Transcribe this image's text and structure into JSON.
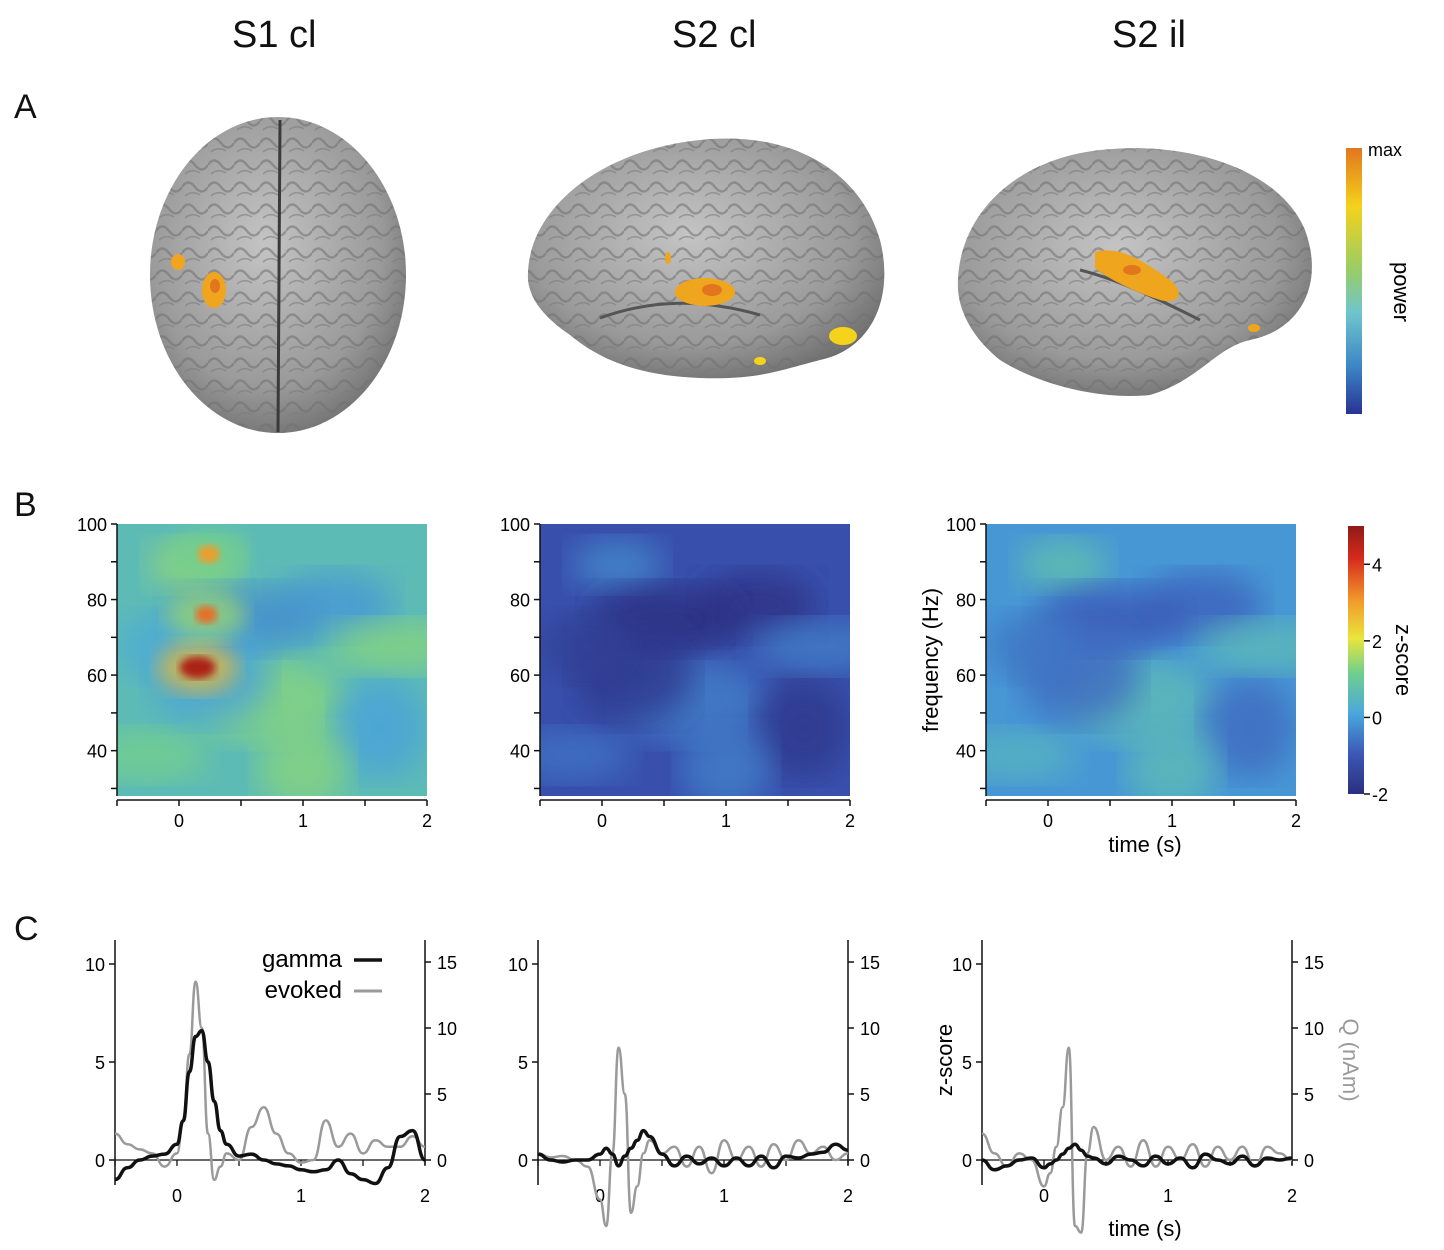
{
  "columns": [
    "S1 cl",
    "S2 cl",
    "S2 il"
  ],
  "panel_letters": [
    "A",
    "B",
    "C"
  ],
  "panelA": {
    "colorbar": {
      "top_label": "max",
      "axis_label": "power",
      "colors": [
        "#e2761f",
        "#f5d21b",
        "#9bcd63",
        "#6fc5cc",
        "#3d86c6",
        "#283393"
      ]
    },
    "brain_color": "#9a9a9a",
    "activation_color": "#f0a51e"
  },
  "panelB": {
    "ylabel": "frequency (Hz)",
    "xlabel": "time (s)",
    "xlim": [
      -0.5,
      2
    ],
    "ylim": [
      28,
      100
    ],
    "xticks": [
      "0",
      "1",
      "2"
    ],
    "yticks": [
      "100",
      "80",
      "60",
      "40"
    ],
    "colorbar": {
      "label": "z-score",
      "ticks": [
        "4",
        "2",
        "0",
        "-2"
      ],
      "range": [
        -2,
        5
      ],
      "colors": [
        "#2b2f7e",
        "#3b58b7",
        "#4aa7dc",
        "#6fcf8f",
        "#e8e63b",
        "#f29b2b",
        "#d62a1c",
        "#8e1b16"
      ]
    }
  },
  "panelC": {
    "left_label": "z-score",
    "right_label": "Q (nAm)",
    "xlabel": "time (s)",
    "xticks": [
      "0",
      "1",
      "2"
    ],
    "left_ticks": [
      "10",
      "5",
      "0"
    ],
    "right_ticks": [
      "15",
      "10",
      "5",
      "0"
    ],
    "legend": [
      {
        "name": "gamma",
        "color": "#111111"
      },
      {
        "name": "evoked",
        "color": "#9a9a9a"
      }
    ]
  },
  "chart_data": [
    {
      "type": "heatmap",
      "title": "S1 cl",
      "xlabel": "",
      "ylabel": "",
      "xlim": [
        -0.5,
        2
      ],
      "ylim": [
        28,
        100
      ],
      "background_zscore": 0.5,
      "hotspots": [
        {
          "time": 0.15,
          "freq": 62,
          "zscore": 4.6
        },
        {
          "time": 0.22,
          "freq": 76,
          "zscore": 3.4
        },
        {
          "time": 0.24,
          "freq": 92,
          "zscore": 3.0
        }
      ]
    },
    {
      "type": "heatmap",
      "title": "S2 cl",
      "xlabel": "",
      "ylabel": "",
      "xlim": [
        -0.5,
        2
      ],
      "ylim": [
        28,
        100
      ],
      "background_zscore": -1.2,
      "hotspots": []
    },
    {
      "type": "heatmap",
      "title": "S2 il",
      "xlabel": "time (s)",
      "ylabel": "frequency (Hz)",
      "xlim": [
        -0.5,
        2
      ],
      "ylim": [
        28,
        100
      ],
      "background_zscore": -0.2,
      "hotspots": []
    },
    {
      "type": "line",
      "title": "S1 cl",
      "x": [
        -0.5,
        -0.4,
        -0.3,
        -0.2,
        -0.1,
        0.0,
        0.05,
        0.1,
        0.15,
        0.2,
        0.25,
        0.3,
        0.35,
        0.4,
        0.5,
        0.6,
        0.7,
        0.8,
        0.9,
        1.0,
        1.1,
        1.2,
        1.3,
        1.4,
        1.5,
        1.6,
        1.7,
        1.8,
        1.9,
        2.0
      ],
      "ylim_left": [
        -1.2,
        11
      ],
      "ylim_right": [
        -1.5,
        15.5
      ],
      "series": [
        {
          "name": "gamma",
          "axis": "left",
          "values": [
            -1.0,
            -0.4,
            0.0,
            0.2,
            0.3,
            0.8,
            2.0,
            4.5,
            6.3,
            6.6,
            5.0,
            3.0,
            1.5,
            0.8,
            0.2,
            0.3,
            0.0,
            -0.2,
            -0.3,
            -0.5,
            -0.6,
            -0.5,
            0.0,
            -0.7,
            -1.0,
            -1.2,
            -0.4,
            1.2,
            1.5,
            0.0
          ]
        },
        {
          "name": "evoked",
          "axis": "right",
          "values": [
            2.0,
            1.2,
            0.8,
            0.5,
            -0.5,
            0.5,
            3.0,
            8.0,
            13.5,
            10.0,
            2.0,
            -1.5,
            -0.5,
            0.5,
            0.0,
            2.5,
            4.0,
            2.0,
            0.5,
            -0.2,
            0.0,
            3.0,
            1.0,
            2.0,
            0.5,
            1.5,
            1.0,
            1.0,
            1.8,
            1.0
          ]
        }
      ]
    },
    {
      "type": "line",
      "title": "S2 cl",
      "x": [
        -0.5,
        -0.4,
        -0.3,
        -0.2,
        -0.1,
        0.0,
        0.05,
        0.1,
        0.15,
        0.2,
        0.25,
        0.3,
        0.35,
        0.4,
        0.5,
        0.6,
        0.7,
        0.8,
        0.9,
        1.0,
        1.1,
        1.2,
        1.3,
        1.4,
        1.5,
        1.6,
        1.7,
        1.8,
        1.9,
        2.0
      ],
      "ylim_left": [
        -1.2,
        11
      ],
      "ylim_right": [
        -1.5,
        15.5
      ],
      "series": [
        {
          "name": "gamma",
          "axis": "left",
          "values": [
            0.3,
            0.0,
            -0.1,
            0.0,
            0.0,
            0.3,
            0.6,
            0.3,
            -0.3,
            0.2,
            0.6,
            1.0,
            1.5,
            1.2,
            0.3,
            -0.3,
            0.2,
            -0.2,
            0.1,
            -0.3,
            0.1,
            -0.3,
            0.2,
            -0.4,
            0.2,
            0.1,
            0.3,
            0.4,
            0.8,
            0.5
          ]
        },
        {
          "name": "evoked",
          "axis": "right",
          "values": [
            0.5,
            0.2,
            0.3,
            0.0,
            -0.5,
            -3.0,
            -5.0,
            0.5,
            8.5,
            5.0,
            -4.0,
            -2.0,
            0.5,
            1.5,
            0.5,
            1.0,
            -0.5,
            1.0,
            -1.0,
            1.5,
            0.0,
            1.0,
            -0.5,
            1.2,
            0.0,
            1.5,
            0.5,
            1.0,
            0.0,
            0.5
          ]
        }
      ]
    },
    {
      "type": "line",
      "title": "S2 il",
      "x": [
        -0.5,
        -0.4,
        -0.3,
        -0.2,
        -0.1,
        0.0,
        0.05,
        0.1,
        0.15,
        0.2,
        0.25,
        0.3,
        0.35,
        0.4,
        0.5,
        0.6,
        0.7,
        0.8,
        0.9,
        1.0,
        1.1,
        1.2,
        1.3,
        1.4,
        1.5,
        1.6,
        1.7,
        1.8,
        1.9,
        2.0
      ],
      "ylim_left": [
        -1.2,
        11
      ],
      "ylim_right": [
        -1.5,
        15.5
      ],
      "series": [
        {
          "name": "gamma",
          "axis": "left",
          "values": [
            0.0,
            -0.5,
            -0.3,
            0.0,
            0.1,
            -0.4,
            -0.2,
            0.0,
            0.3,
            0.6,
            0.8,
            0.5,
            0.2,
            0.1,
            -0.2,
            0.2,
            0.0,
            -0.3,
            0.2,
            -0.2,
            0.1,
            -0.4,
            0.3,
            0.0,
            -0.2,
            0.2,
            -0.3,
            0.1,
            0.0,
            0.1
          ]
        },
        {
          "name": "evoked",
          "axis": "right",
          "values": [
            2.0,
            0.5,
            -0.5,
            0.5,
            0.0,
            -2.0,
            -1.0,
            1.0,
            4.0,
            8.5,
            -5.0,
            -5.5,
            0.5,
            2.5,
            0.0,
            1.0,
            -0.5,
            1.5,
            -0.5,
            1.0,
            0.0,
            1.2,
            -0.5,
            1.0,
            0.0,
            1.0,
            -0.5,
            1.0,
            0.5,
            0.0
          ]
        }
      ]
    }
  ]
}
